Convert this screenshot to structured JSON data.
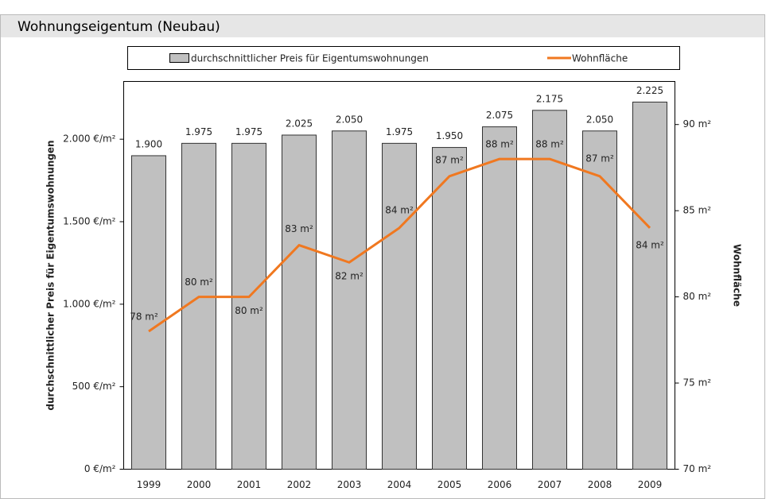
{
  "chart_data": {
    "type": "bar",
    "title": "Wohnungseigentum (Neubau)",
    "categories": [
      "1999",
      "2000",
      "2001",
      "2002",
      "2003",
      "2004",
      "2005",
      "2006",
      "2007",
      "2008",
      "2009"
    ],
    "series": [
      {
        "name": "durchschnittlicher Preis für Eigentumswohnungen",
        "color": "#c0c0c0",
        "values": [
          1900,
          1975,
          1975,
          2025,
          2050,
          1975,
          1950,
          2075,
          2175,
          2050,
          2225
        ],
        "value_labels": [
          "1.900",
          "1.975",
          "1.975",
          "2.025",
          "2.050",
          "1.975",
          "1.950",
          "2.075",
          "2.175",
          "2.050",
          "2.225"
        ]
      },
      {
        "name": "Wohnfläche",
        "type": "line",
        "axis": "y2",
        "color": "#f07820",
        "values": [
          78,
          80,
          80,
          83,
          82,
          84,
          87,
          88,
          88,
          87,
          84
        ],
        "value_labels": [
          "78 m²",
          "80 m²",
          "80 m²",
          "83 m²",
          "82 m²",
          "84 m²",
          "87 m²",
          "88 m²",
          "88 m²",
          "87 m²",
          "84 m²"
        ]
      }
    ],
    "y_label": "durchschnittlicher Preis für Eigentumswohnungen",
    "y2_label": "Wohnfläche",
    "ylim": [
      0,
      2350
    ],
    "yticks": [
      {
        "value": 0,
        "label": "0 €/m²"
      },
      {
        "value": 500,
        "label": "500 €/m²"
      },
      {
        "value": 1000,
        "label": "1.000 €/m²"
      },
      {
        "value": 1500,
        "label": "1.500 €/m²"
      },
      {
        "value": 2000,
        "label": "2.000 €/m²"
      }
    ],
    "y2lim": [
      70,
      92.5
    ],
    "y2ticks": [
      {
        "value": 70,
        "label": "70 m²"
      },
      {
        "value": 75,
        "label": "75 m²"
      },
      {
        "value": 80,
        "label": "80 m²"
      },
      {
        "value": 85,
        "label": "85 m²"
      },
      {
        "value": 90,
        "label": "90 m²"
      }
    ],
    "legend": "top",
    "grid": false
  }
}
